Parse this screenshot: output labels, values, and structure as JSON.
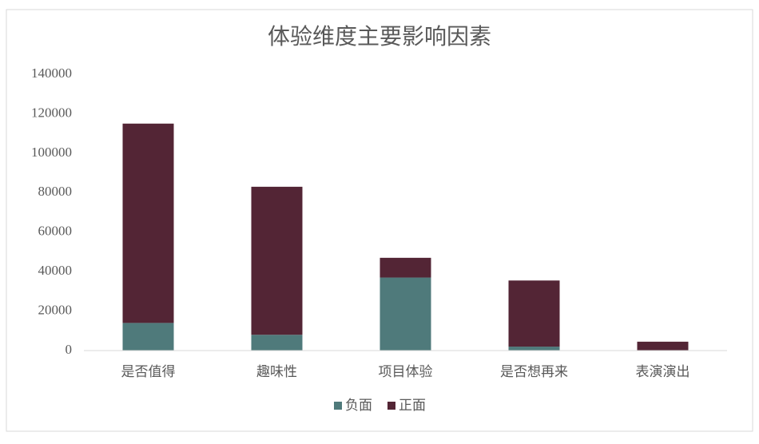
{
  "chart_data": {
    "type": "stacked-bar",
    "title": "体验维度主要影响因素",
    "categories": [
      "是否值得",
      "趣味性",
      "项目体验",
      "是否想再来",
      "表演演出"
    ],
    "series": [
      {
        "name": "负面",
        "color": "#4f7a7b",
        "values": [
          14000,
          8000,
          37000,
          2000,
          0
        ]
      },
      {
        "name": "正面",
        "color": "#532535",
        "values": [
          101000,
          75000,
          10000,
          33500,
          4500
        ]
      }
    ],
    "ylim": [
      0,
      140000
    ],
    "yticks": [
      0,
      20000,
      40000,
      60000,
      80000,
      100000,
      120000,
      140000
    ],
    "grid": false,
    "legend": "bottom"
  }
}
